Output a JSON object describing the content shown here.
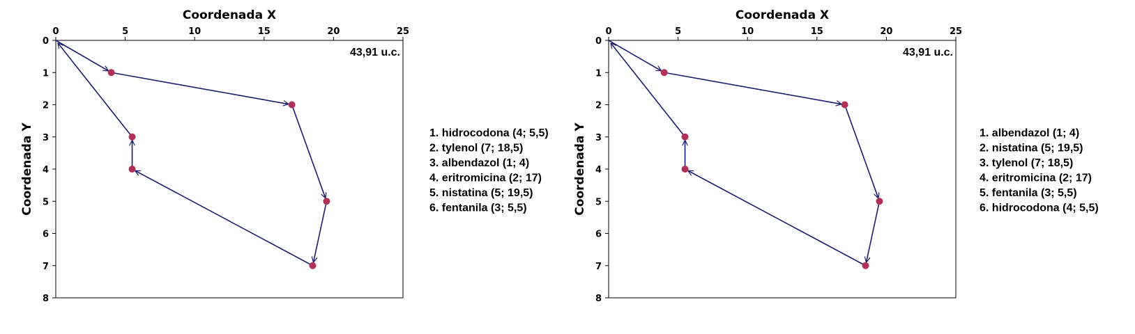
{
  "chart_data": [
    {
      "type": "scatter",
      "xlabel": "Coordenada X",
      "ylabel": "Coordenada Y",
      "xlim": [
        0,
        25
      ],
      "ylim": [
        0,
        8
      ],
      "x_axis_position": "top",
      "y_axis_inverted": true,
      "xticks": [
        0,
        5,
        10,
        15,
        20,
        25
      ],
      "yticks": [
        0,
        1,
        2,
        3,
        4,
        5,
        6,
        7,
        8
      ],
      "distance_label": "43,91 u.c.",
      "route_points": [
        {
          "x": 0,
          "y": 0
        },
        {
          "x": 4,
          "y": 1
        },
        {
          "x": 17,
          "y": 2
        },
        {
          "x": 19.5,
          "y": 5
        },
        {
          "x": 18.5,
          "y": 7
        },
        {
          "x": 5.5,
          "y": 4
        },
        {
          "x": 5.5,
          "y": 3
        },
        {
          "x": 0,
          "y": 0
        }
      ],
      "legend": [
        "1. hidrocodona (4; 5,5)",
        "2. tylenol (7; 18,5)",
        "3. albendazol (1; 4)",
        "4. eritromicina (2; 17)",
        "5. nistatina (5; 19,5)",
        "6. fentanila (3; 5,5)"
      ],
      "colors": {
        "line": "#1a1a6e",
        "marker": "#b0305a"
      }
    },
    {
      "type": "scatter",
      "xlabel": "Coordenada X",
      "ylabel": "Coordenada Y",
      "xlim": [
        0,
        25
      ],
      "ylim": [
        0,
        8
      ],
      "x_axis_position": "top",
      "y_axis_inverted": true,
      "xticks": [
        0,
        5,
        10,
        15,
        20,
        25
      ],
      "yticks": [
        0,
        1,
        2,
        3,
        4,
        5,
        6,
        7,
        8
      ],
      "distance_label": "43,91 u.c.",
      "route_points": [
        {
          "x": 0,
          "y": 0
        },
        {
          "x": 4,
          "y": 1
        },
        {
          "x": 17,
          "y": 2
        },
        {
          "x": 19.5,
          "y": 5
        },
        {
          "x": 18.5,
          "y": 7
        },
        {
          "x": 5.5,
          "y": 4
        },
        {
          "x": 5.5,
          "y": 3
        },
        {
          "x": 0,
          "y": 0
        }
      ],
      "legend": [
        "1. albendazol (1; 4)",
        "2. nistatina (5; 19,5)",
        "3. tylenol (7; 18,5)",
        "4. eritromicina (2; 17)",
        "5. fentanila (3; 5,5)",
        "6. hidrocodona (4; 5,5)"
      ],
      "colors": {
        "line": "#1a1a6e",
        "marker": "#b0305a"
      }
    }
  ]
}
